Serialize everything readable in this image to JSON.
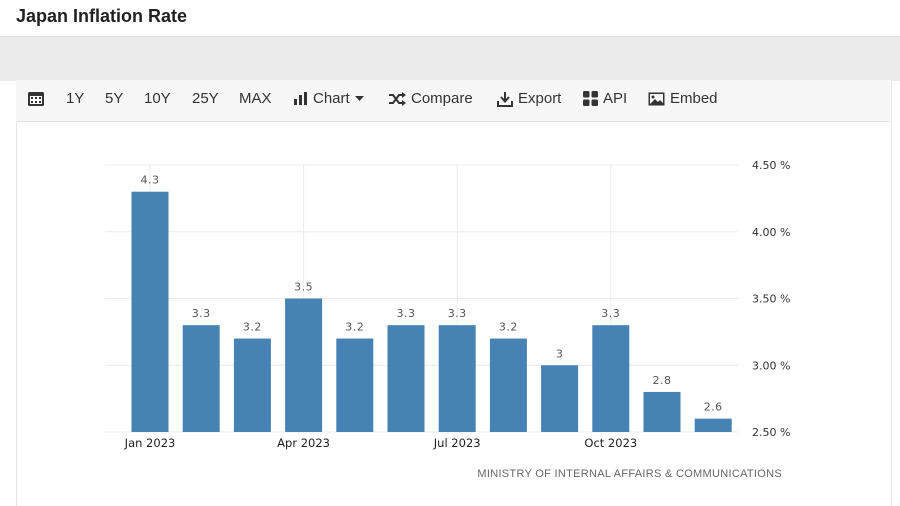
{
  "page": {
    "title": "Japan Inflation Rate"
  },
  "toolbar": {
    "items": [
      {
        "label": "1Y"
      },
      {
        "label": "5Y"
      },
      {
        "label": "10Y"
      },
      {
        "label": "25Y"
      },
      {
        "label": "MAX"
      },
      {
        "label": "Chart"
      },
      {
        "label": "Compare"
      },
      {
        "label": "Export"
      },
      {
        "label": "API"
      },
      {
        "label": "Embed"
      }
    ]
  },
  "colors": {
    "bar": "#4682b4",
    "grid": "#ececec",
    "toolbar_bg": "#f7f7f7"
  },
  "chart_data": {
    "type": "bar",
    "title": "",
    "xlabel": "",
    "ylabel": "",
    "categories": [
      "Jan 2023",
      "Feb 2023",
      "Mar 2023",
      "Apr 2023",
      "May 2023",
      "Jun 2023",
      "Jul 2023",
      "Aug 2023",
      "Sep 2023",
      "Oct 2023",
      "Nov 2023",
      "Dec 2023"
    ],
    "values": [
      4.3,
      3.3,
      3.2,
      3.5,
      3.2,
      3.3,
      3.3,
      3.2,
      3.0,
      3.3,
      2.8,
      2.6
    ],
    "data_labels": [
      "4.3",
      "3.3",
      "3.2",
      "3.5",
      "3.2",
      "3.3",
      "3.3",
      "3.2",
      "3",
      "3.3",
      "2.8",
      "2.6"
    ],
    "x_tick_labels": [
      "Jan 2023",
      "Apr 2023",
      "Jul 2023",
      "Oct 2023"
    ],
    "y_ticks": [
      4.5,
      4.0,
      3.5,
      3.0,
      2.5
    ],
    "y_tick_labels": [
      "4.50 %",
      "4.00 %",
      "3.50 %",
      "3.00 %",
      "2.50 %"
    ],
    "ylim": [
      2.5,
      4.5
    ],
    "grid": true,
    "y_axis_position": "right",
    "source": "MINISTRY OF INTERNAL AFFAIRS & COMMUNICATIONS"
  }
}
